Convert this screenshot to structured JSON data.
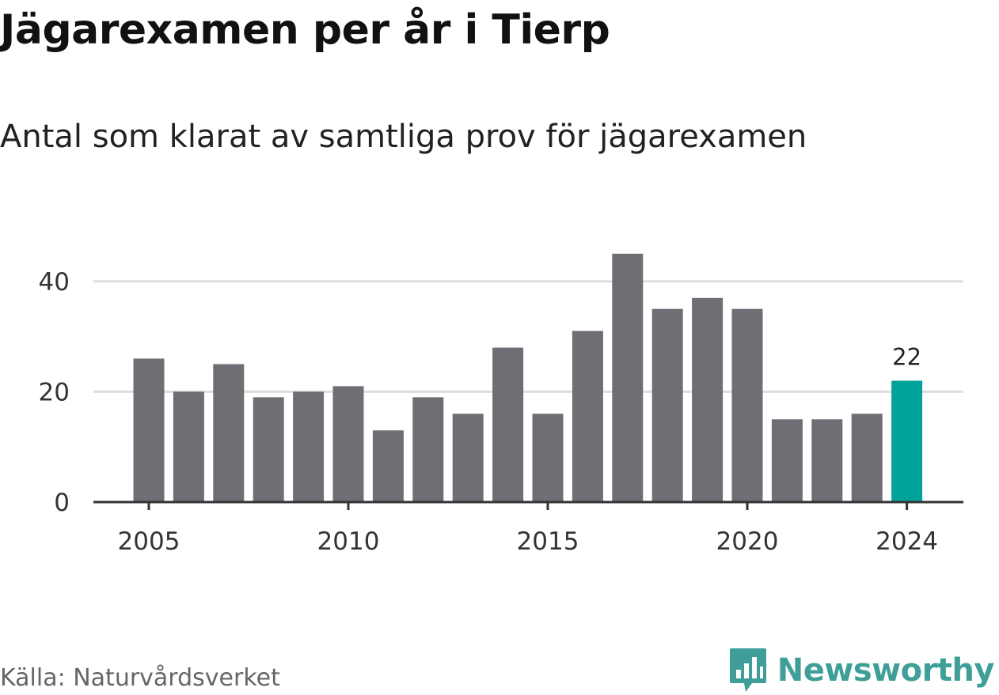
{
  "title": "Jägarexamen per år i Tierp",
  "subtitle": "Antal som klarat av samtliga prov för jägarexamen",
  "source": "Källa: Naturvårdsverket",
  "brand": {
    "name": "Newsworthy",
    "icon": "bar-chart-icon",
    "color": "#3f9f98"
  },
  "colors": {
    "bar": "#6f6e75",
    "highlight": "#00a39a",
    "grid": "#dddddd",
    "axis": "#333333"
  },
  "chart_data": {
    "type": "bar",
    "x": [
      2005,
      2006,
      2007,
      2008,
      2009,
      2010,
      2011,
      2012,
      2013,
      2014,
      2015,
      2016,
      2017,
      2018,
      2019,
      2020,
      2021,
      2022,
      2023,
      2024
    ],
    "values": [
      26,
      20,
      25,
      19,
      20,
      21,
      13,
      19,
      16,
      28,
      16,
      31,
      45,
      35,
      37,
      35,
      15,
      15,
      16,
      22
    ],
    "x_ticks": [
      "2005",
      "2010",
      "2015",
      "2020",
      "2024"
    ],
    "y_ticks": [
      "0",
      "20",
      "40"
    ],
    "ylim": [
      0,
      48
    ],
    "grid": true,
    "highlight": {
      "x": 2024,
      "label": "22"
    },
    "xlabel": "",
    "ylabel": ""
  }
}
